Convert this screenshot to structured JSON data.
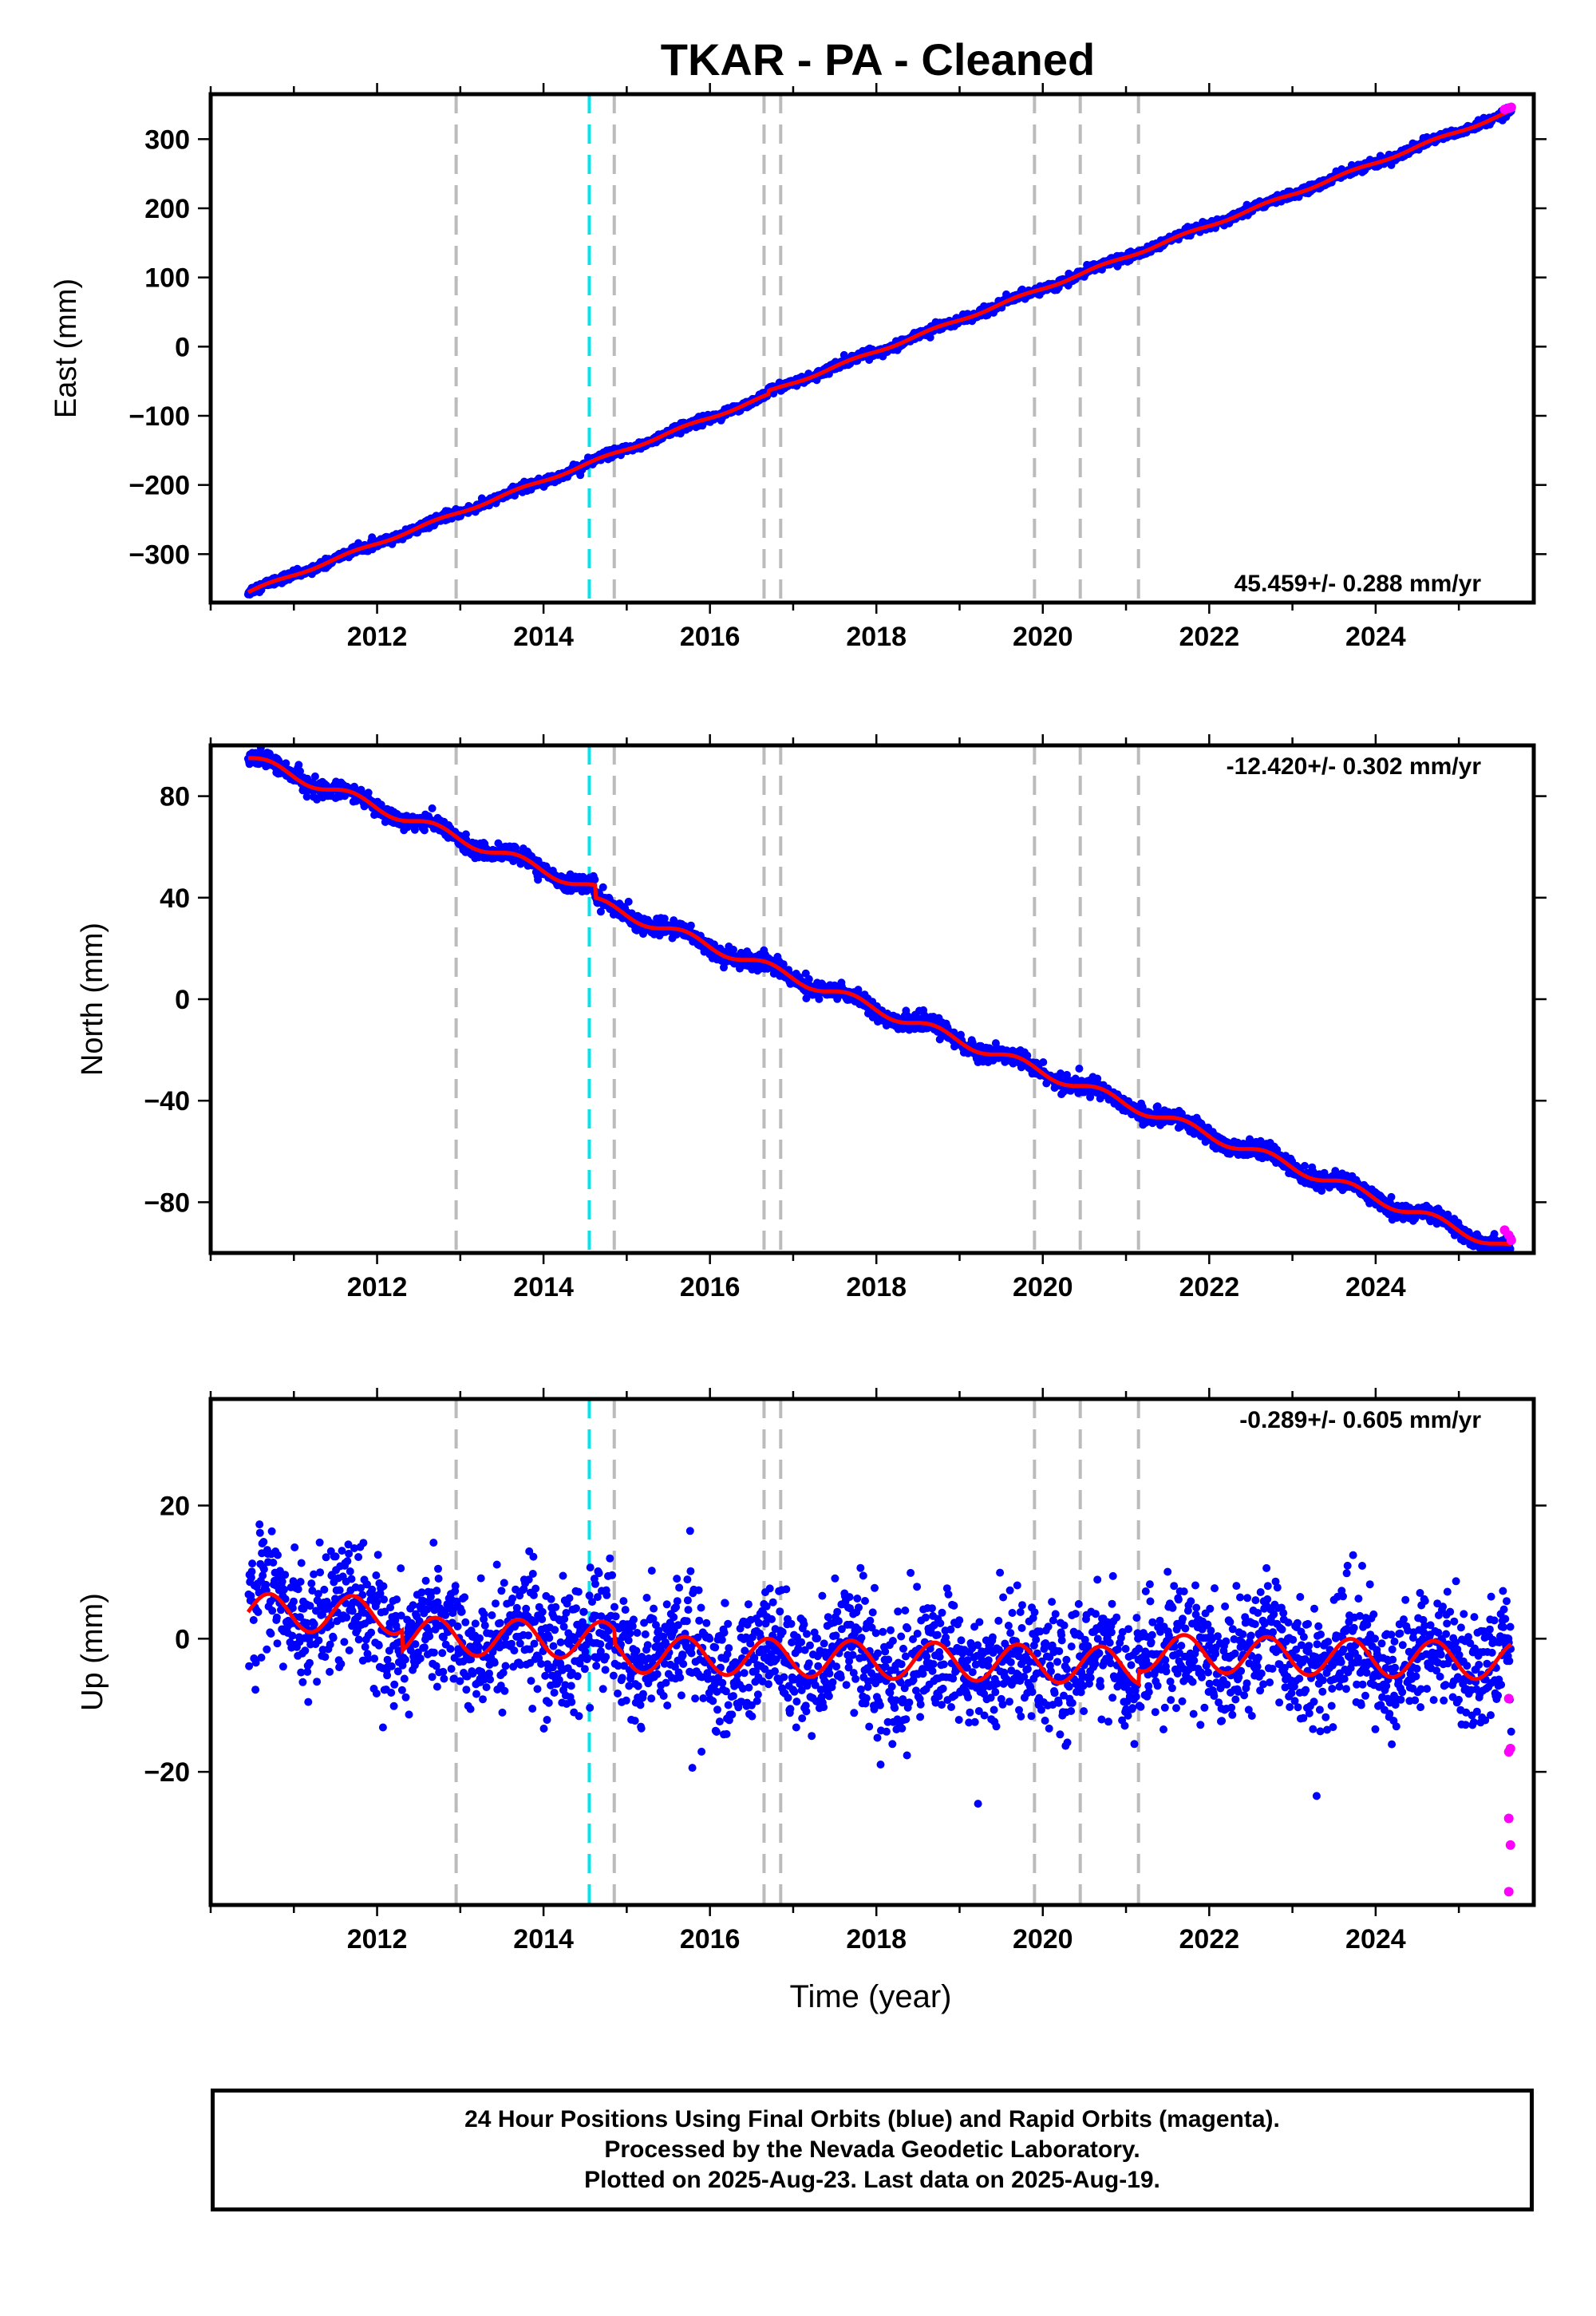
{
  "title": "TKAR  - PA - Cleaned",
  "x_axis_title": "Time (year)",
  "footer": {
    "line1": "24 Hour Positions Using Final Orbits (blue) and Rapid Orbits (magenta).",
    "line2": "Processed by the Nevada Geodetic Laboratory.",
    "line3": "Plotted on 2025-Aug-23. Last data on 2025-Aug-19."
  },
  "colors": {
    "final_orbits": "#0000ff",
    "rapid_orbits": "#ff00ff",
    "model_fit": "#ff0000",
    "equipment_change_line": "#bbbbbb",
    "earthquake_line": "#00e5ee"
  },
  "chart_data": [
    {
      "type": "scatter",
      "component": "east",
      "ylabel": "East (mm)",
      "rate_label": "45.459+/- 0.288 mm/yr",
      "xlim": [
        2010.0,
        2025.9
      ],
      "ylim": [
        -370,
        365
      ],
      "xticks": [
        2012,
        2014,
        2016,
        2018,
        2020,
        2022,
        2024
      ],
      "yticks": [
        -300,
        -200,
        -100,
        0,
        100,
        200,
        300
      ],
      "ytick_labels": [
        "−300",
        "−200",
        "−100",
        "0",
        "100",
        "200",
        "300"
      ],
      "data_start": 2010.45,
      "data_end": 2025.63,
      "y_at_start": -355,
      "trend_mm_per_yr": 45.459,
      "seasonal_amp_mm": 2.0,
      "scatter_mm": 3.0,
      "steps": [
        {
          "x": 2016.7,
          "dy": 5
        }
      ],
      "rapid_points": [
        {
          "x": 2025.55,
          "y": 343
        },
        {
          "x": 2025.6,
          "y": 345
        },
        {
          "x": 2025.63,
          "y": 346
        }
      ],
      "equipment_change_lines": [
        2012.95,
        2014.85,
        2016.65,
        2016.85,
        2019.9,
        2020.45,
        2021.15
      ],
      "earthquake_lines": [
        2014.55
      ],
      "grid": false
    },
    {
      "type": "scatter",
      "component": "north",
      "ylabel": "North (mm)",
      "rate_label": "-12.420+/- 0.302 mm/yr",
      "xlim": [
        2010.0,
        2025.9
      ],
      "ylim": [
        -100,
        100
      ],
      "xticks": [
        2012,
        2014,
        2016,
        2018,
        2020,
        2022,
        2024
      ],
      "yticks": [
        -80,
        -40,
        0,
        40,
        80
      ],
      "ytick_labels": [
        "−80",
        "−40",
        "0",
        "40",
        "80"
      ],
      "data_start": 2010.45,
      "data_end": 2025.63,
      "y_at_start": 95,
      "trend_mm_per_yr": -12.42,
      "seasonal_amp_mm": 2.0,
      "scatter_mm": 1.6,
      "steps": [
        {
          "x": 2014.62,
          "dy": -5
        }
      ],
      "rapid_points": [
        {
          "x": 2025.55,
          "y": -91
        },
        {
          "x": 2025.6,
          "y": -93
        },
        {
          "x": 2025.63,
          "y": -95
        }
      ],
      "equipment_change_lines": [
        2012.95,
        2014.85,
        2016.65,
        2016.85,
        2019.9,
        2020.45,
        2021.15
      ],
      "earthquake_lines": [
        2014.55
      ],
      "grid": false
    },
    {
      "type": "scatter",
      "component": "up",
      "ylabel": "Up (mm)",
      "rate_label": "-0.289+/- 0.605 mm/yr",
      "xlim": [
        2010.0,
        2025.9
      ],
      "ylim": [
        -40,
        36
      ],
      "xticks": [
        2012,
        2014,
        2016,
        2018,
        2020,
        2022,
        2024
      ],
      "yticks": [
        -20,
        0,
        20
      ],
      "ytick_labels": [
        "−20",
        "0",
        "20"
      ],
      "data_start": 2010.45,
      "data_end": 2025.63,
      "y_at_start": 4,
      "trend_mm_per_yr": -0.289,
      "seasonal_amp_mm": 2.8,
      "scatter_mm": 4.5,
      "steps": [
        {
          "x": 2012.3,
          "dy": -3
        },
        {
          "x": 2014.85,
          "dy": -2
        },
        {
          "x": 2021.15,
          "dy": 2
        }
      ],
      "rapid_points": [
        {
          "x": 2025.6,
          "y": -9
        },
        {
          "x": 2025.6,
          "y": -17
        },
        {
          "x": 2025.62,
          "y": -16.5
        },
        {
          "x": 2025.6,
          "y": -27
        },
        {
          "x": 2025.62,
          "y": -31
        },
        {
          "x": 2025.6,
          "y": -38
        }
      ],
      "equipment_change_lines": [
        2012.95,
        2014.85,
        2016.65,
        2016.85,
        2019.9,
        2020.45,
        2021.15
      ],
      "earthquake_lines": [
        2014.55
      ],
      "grid": false
    }
  ]
}
